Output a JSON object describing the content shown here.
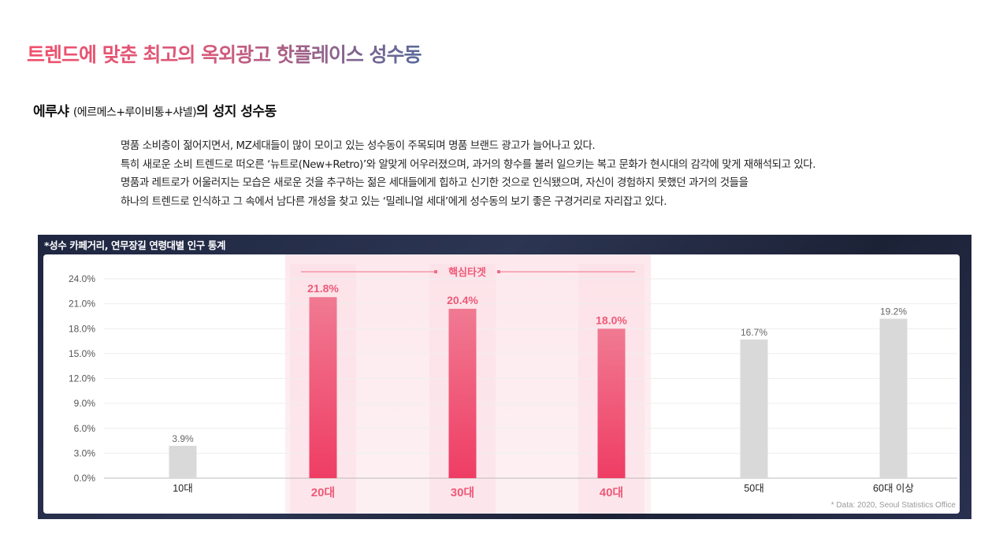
{
  "page": {
    "title": "트렌드에 맞춘 최고의 옥외광고 핫플레이스 성수동",
    "section_heading": {
      "main": "에루샤",
      "sub": "(에르메스+루이비통+샤넬)",
      "rest": "의 성지 성수동"
    },
    "paragraphs": [
      "명품 소비층이 젊어지면서, MZ세대들이 많이 모이고 있는 성수동이 주목되며 명품 브랜드 광고가 늘어나고 있다.",
      "특히 새로운 소비 트렌드로 떠오른 ‘뉴트로(New+Retro)’와 알맞게 어우러졌으며, 과거의 향수를 불러 일으키는 복고 문화가 현시대의 감각에 맞게 재해석되고 있다.",
      "명품과 레트로가 어울러지는 모습은 새로운 것을 추구하는 젊은 세대들에게 힙하고 신기한 것으로 인식됐으며, 자신이 경험하지 못했던 과거의 것들을",
      "하나의 트렌드로 인식하고 그 속에서 남다른 개성을 찾고 있는 ‘밀레니얼 세대’에게 성수동의 보기 좋은 구경거리로 자리잡고 있다."
    ]
  },
  "chart_data": {
    "type": "bar",
    "title": "*성수 카페거리, 연무장길 연령대별 인구 통계",
    "categories": [
      "10대",
      "20대",
      "30대",
      "40대",
      "50대",
      "60대 이상"
    ],
    "values": [
      3.9,
      21.8,
      20.4,
      18.0,
      16.7,
      19.2
    ],
    "value_labels": [
      "3.9%",
      "21.8%",
      "20.4%",
      "18.0%",
      "16.7%",
      "19.2%"
    ],
    "highlighted": [
      false,
      true,
      true,
      true,
      false,
      false
    ],
    "highlight_label": "핵심타겟",
    "ylim": [
      0,
      24
    ],
    "yticks": [
      "0.0%",
      "3.0%",
      "6.0%",
      "9.0%",
      "12.0%",
      "15.0%",
      "18.0%",
      "21.0%",
      "24.0%"
    ],
    "ytick_values": [
      0,
      3,
      6,
      9,
      12,
      15,
      18,
      21,
      24
    ],
    "grid": true,
    "source_note": "* Data: 2020, Seoul Statistics Office",
    "colors": {
      "highlight_top": "#f07a92",
      "highlight_bottom": "#ef3d64",
      "highlight_text": "#ef5a78",
      "normal_bar": "#d9d9d9",
      "normal_text": "#666666",
      "band": "#fdecef"
    }
  }
}
